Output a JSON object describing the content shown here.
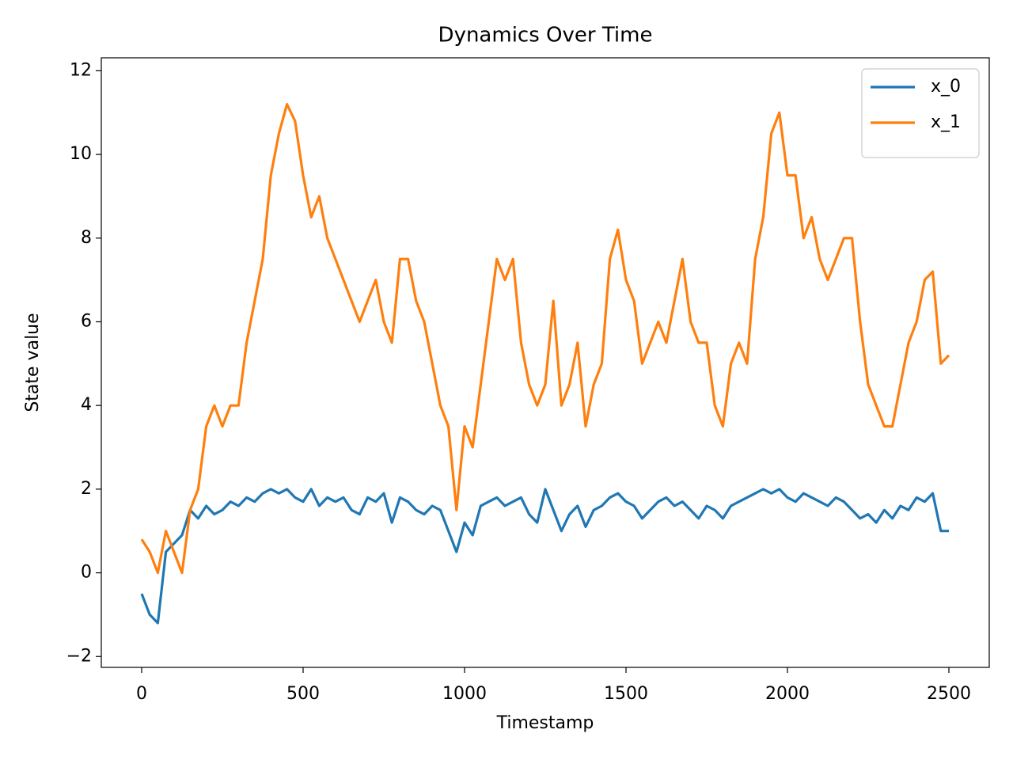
{
  "chart_data": {
    "type": "line",
    "title": "Dynamics Over Time",
    "xlabel": "Timestamp",
    "ylabel": "State value",
    "x": [
      0,
      25,
      50,
      75,
      100,
      125,
      150,
      175,
      200,
      225,
      250,
      275,
      300,
      325,
      350,
      375,
      400,
      425,
      450,
      475,
      500,
      525,
      550,
      575,
      600,
      625,
      650,
      675,
      700,
      725,
      750,
      775,
      800,
      825,
      850,
      875,
      900,
      925,
      950,
      975,
      1000,
      1025,
      1050,
      1075,
      1100,
      1125,
      1150,
      1175,
      1200,
      1225,
      1250,
      1275,
      1300,
      1325,
      1350,
      1375,
      1400,
      1425,
      1450,
      1475,
      1500,
      1525,
      1550,
      1575,
      1600,
      1625,
      1650,
      1675,
      1700,
      1725,
      1750,
      1775,
      1800,
      1825,
      1850,
      1875,
      1900,
      1925,
      1950,
      1975,
      2000,
      2025,
      2050,
      2075,
      2100,
      2125,
      2150,
      2175,
      2200,
      2225,
      2250,
      2275,
      2300,
      2325,
      2350,
      2375,
      2400,
      2425,
      2450,
      2475,
      2500
    ],
    "series": [
      {
        "name": "x_0",
        "color": "#1f77b4",
        "values": [
          -0.5,
          -1.0,
          -1.2,
          0.5,
          0.7,
          0.9,
          1.5,
          1.3,
          1.6,
          1.4,
          1.5,
          1.7,
          1.6,
          1.8,
          1.7,
          1.9,
          2.0,
          1.9,
          2.0,
          1.8,
          1.7,
          2.0,
          1.6,
          1.8,
          1.7,
          1.8,
          1.5,
          1.4,
          1.8,
          1.7,
          1.9,
          1.2,
          1.8,
          1.7,
          1.5,
          1.4,
          1.6,
          1.5,
          1.0,
          0.5,
          1.2,
          0.9,
          1.6,
          1.7,
          1.8,
          1.6,
          1.7,
          1.8,
          1.4,
          1.2,
          2.0,
          1.5,
          1.0,
          1.4,
          1.6,
          1.1,
          1.5,
          1.6,
          1.8,
          1.9,
          1.7,
          1.6,
          1.3,
          1.5,
          1.7,
          1.8,
          1.6,
          1.7,
          1.5,
          1.3,
          1.6,
          1.5,
          1.3,
          1.6,
          1.7,
          1.8,
          1.9,
          2.0,
          1.9,
          2.0,
          1.8,
          1.7,
          1.9,
          1.8,
          1.7,
          1.6,
          1.8,
          1.7,
          1.5,
          1.3,
          1.4,
          1.2,
          1.5,
          1.3,
          1.6,
          1.5,
          1.8,
          1.7,
          1.9,
          1.0,
          1.0
        ]
      },
      {
        "name": "x_1",
        "color": "#ff7f0e",
        "values": [
          0.8,
          0.5,
          0.0,
          1.0,
          0.5,
          0.0,
          1.5,
          2.0,
          3.5,
          4.0,
          3.5,
          4.0,
          4.0,
          5.5,
          6.5,
          7.5,
          9.5,
          10.5,
          11.2,
          10.8,
          9.5,
          8.5,
          9.0,
          8.0,
          7.5,
          7.0,
          6.5,
          6.0,
          6.5,
          7.0,
          6.0,
          5.5,
          7.5,
          7.5,
          6.5,
          6.0,
          5.0,
          4.0,
          3.5,
          1.5,
          3.5,
          3.0,
          4.5,
          6.0,
          7.5,
          7.0,
          7.5,
          5.5,
          4.5,
          4.0,
          4.5,
          6.5,
          4.0,
          4.5,
          5.5,
          3.5,
          4.5,
          5.0,
          7.5,
          8.2,
          7.0,
          6.5,
          5.0,
          5.5,
          6.0,
          5.5,
          6.5,
          7.5,
          6.0,
          5.5,
          5.5,
          4.0,
          3.5,
          5.0,
          5.5,
          5.0,
          7.5,
          8.5,
          10.5,
          11.0,
          9.5,
          9.5,
          8.0,
          8.5,
          7.5,
          7.0,
          7.5,
          8.0,
          8.0,
          6.0,
          4.5,
          4.0,
          3.5,
          3.5,
          4.5,
          5.5,
          6.0,
          7.0,
          7.2,
          5.0,
          5.2
        ]
      }
    ],
    "xlim": [
      -125,
      2625
    ],
    "ylim": [
      -2.26,
      12.31
    ],
    "xticks": [
      0,
      500,
      1000,
      1500,
      2000,
      2500
    ],
    "yticks": [
      {
        "value": -2,
        "label": "−2"
      },
      0,
      2,
      4,
      6,
      8,
      10,
      12
    ],
    "legend": "upper right"
  }
}
